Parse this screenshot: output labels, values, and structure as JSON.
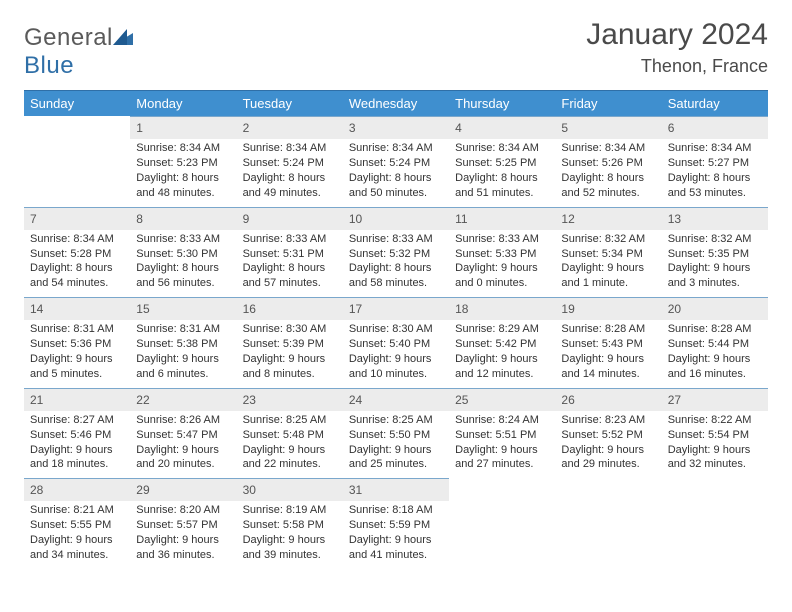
{
  "brand": {
    "part1": "General",
    "part2": "Blue"
  },
  "title": "January 2024",
  "location": "Thenon, France",
  "colors": {
    "header_bg": "#3f8fcf",
    "header_text": "#ffffff",
    "daynum_bg": "#ececec",
    "daynum_border": "#7aa7cc",
    "text": "#333333",
    "brand_gray": "#5a5a5a",
    "brand_blue": "#2f6fa7"
  },
  "weekdays": [
    "Sunday",
    "Monday",
    "Tuesday",
    "Wednesday",
    "Thursday",
    "Friday",
    "Saturday"
  ],
  "weeks": [
    [
      {
        "empty": true
      },
      {
        "n": "1",
        "sr": "Sunrise: 8:34 AM",
        "ss": "Sunset: 5:23 PM",
        "d1": "Daylight: 8 hours",
        "d2": "and 48 minutes."
      },
      {
        "n": "2",
        "sr": "Sunrise: 8:34 AM",
        "ss": "Sunset: 5:24 PM",
        "d1": "Daylight: 8 hours",
        "d2": "and 49 minutes."
      },
      {
        "n": "3",
        "sr": "Sunrise: 8:34 AM",
        "ss": "Sunset: 5:24 PM",
        "d1": "Daylight: 8 hours",
        "d2": "and 50 minutes."
      },
      {
        "n": "4",
        "sr": "Sunrise: 8:34 AM",
        "ss": "Sunset: 5:25 PM",
        "d1": "Daylight: 8 hours",
        "d2": "and 51 minutes."
      },
      {
        "n": "5",
        "sr": "Sunrise: 8:34 AM",
        "ss": "Sunset: 5:26 PM",
        "d1": "Daylight: 8 hours",
        "d2": "and 52 minutes."
      },
      {
        "n": "6",
        "sr": "Sunrise: 8:34 AM",
        "ss": "Sunset: 5:27 PM",
        "d1": "Daylight: 8 hours",
        "d2": "and 53 minutes."
      }
    ],
    [
      {
        "n": "7",
        "sr": "Sunrise: 8:34 AM",
        "ss": "Sunset: 5:28 PM",
        "d1": "Daylight: 8 hours",
        "d2": "and 54 minutes."
      },
      {
        "n": "8",
        "sr": "Sunrise: 8:33 AM",
        "ss": "Sunset: 5:30 PM",
        "d1": "Daylight: 8 hours",
        "d2": "and 56 minutes."
      },
      {
        "n": "9",
        "sr": "Sunrise: 8:33 AM",
        "ss": "Sunset: 5:31 PM",
        "d1": "Daylight: 8 hours",
        "d2": "and 57 minutes."
      },
      {
        "n": "10",
        "sr": "Sunrise: 8:33 AM",
        "ss": "Sunset: 5:32 PM",
        "d1": "Daylight: 8 hours",
        "d2": "and 58 minutes."
      },
      {
        "n": "11",
        "sr": "Sunrise: 8:33 AM",
        "ss": "Sunset: 5:33 PM",
        "d1": "Daylight: 9 hours",
        "d2": "and 0 minutes."
      },
      {
        "n": "12",
        "sr": "Sunrise: 8:32 AM",
        "ss": "Sunset: 5:34 PM",
        "d1": "Daylight: 9 hours",
        "d2": "and 1 minute."
      },
      {
        "n": "13",
        "sr": "Sunrise: 8:32 AM",
        "ss": "Sunset: 5:35 PM",
        "d1": "Daylight: 9 hours",
        "d2": "and 3 minutes."
      }
    ],
    [
      {
        "n": "14",
        "sr": "Sunrise: 8:31 AM",
        "ss": "Sunset: 5:36 PM",
        "d1": "Daylight: 9 hours",
        "d2": "and 5 minutes."
      },
      {
        "n": "15",
        "sr": "Sunrise: 8:31 AM",
        "ss": "Sunset: 5:38 PM",
        "d1": "Daylight: 9 hours",
        "d2": "and 6 minutes."
      },
      {
        "n": "16",
        "sr": "Sunrise: 8:30 AM",
        "ss": "Sunset: 5:39 PM",
        "d1": "Daylight: 9 hours",
        "d2": "and 8 minutes."
      },
      {
        "n": "17",
        "sr": "Sunrise: 8:30 AM",
        "ss": "Sunset: 5:40 PM",
        "d1": "Daylight: 9 hours",
        "d2": "and 10 minutes."
      },
      {
        "n": "18",
        "sr": "Sunrise: 8:29 AM",
        "ss": "Sunset: 5:42 PM",
        "d1": "Daylight: 9 hours",
        "d2": "and 12 minutes."
      },
      {
        "n": "19",
        "sr": "Sunrise: 8:28 AM",
        "ss": "Sunset: 5:43 PM",
        "d1": "Daylight: 9 hours",
        "d2": "and 14 minutes."
      },
      {
        "n": "20",
        "sr": "Sunrise: 8:28 AM",
        "ss": "Sunset: 5:44 PM",
        "d1": "Daylight: 9 hours",
        "d2": "and 16 minutes."
      }
    ],
    [
      {
        "n": "21",
        "sr": "Sunrise: 8:27 AM",
        "ss": "Sunset: 5:46 PM",
        "d1": "Daylight: 9 hours",
        "d2": "and 18 minutes."
      },
      {
        "n": "22",
        "sr": "Sunrise: 8:26 AM",
        "ss": "Sunset: 5:47 PM",
        "d1": "Daylight: 9 hours",
        "d2": "and 20 minutes."
      },
      {
        "n": "23",
        "sr": "Sunrise: 8:25 AM",
        "ss": "Sunset: 5:48 PM",
        "d1": "Daylight: 9 hours",
        "d2": "and 22 minutes."
      },
      {
        "n": "24",
        "sr": "Sunrise: 8:25 AM",
        "ss": "Sunset: 5:50 PM",
        "d1": "Daylight: 9 hours",
        "d2": "and 25 minutes."
      },
      {
        "n": "25",
        "sr": "Sunrise: 8:24 AM",
        "ss": "Sunset: 5:51 PM",
        "d1": "Daylight: 9 hours",
        "d2": "and 27 minutes."
      },
      {
        "n": "26",
        "sr": "Sunrise: 8:23 AM",
        "ss": "Sunset: 5:52 PM",
        "d1": "Daylight: 9 hours",
        "d2": "and 29 minutes."
      },
      {
        "n": "27",
        "sr": "Sunrise: 8:22 AM",
        "ss": "Sunset: 5:54 PM",
        "d1": "Daylight: 9 hours",
        "d2": "and 32 minutes."
      }
    ],
    [
      {
        "n": "28",
        "sr": "Sunrise: 8:21 AM",
        "ss": "Sunset: 5:55 PM",
        "d1": "Daylight: 9 hours",
        "d2": "and 34 minutes."
      },
      {
        "n": "29",
        "sr": "Sunrise: 8:20 AM",
        "ss": "Sunset: 5:57 PM",
        "d1": "Daylight: 9 hours",
        "d2": "and 36 minutes."
      },
      {
        "n": "30",
        "sr": "Sunrise: 8:19 AM",
        "ss": "Sunset: 5:58 PM",
        "d1": "Daylight: 9 hours",
        "d2": "and 39 minutes."
      },
      {
        "n": "31",
        "sr": "Sunrise: 8:18 AM",
        "ss": "Sunset: 5:59 PM",
        "d1": "Daylight: 9 hours",
        "d2": "and 41 minutes."
      },
      {
        "empty": true
      },
      {
        "empty": true
      },
      {
        "empty": true
      }
    ]
  ]
}
